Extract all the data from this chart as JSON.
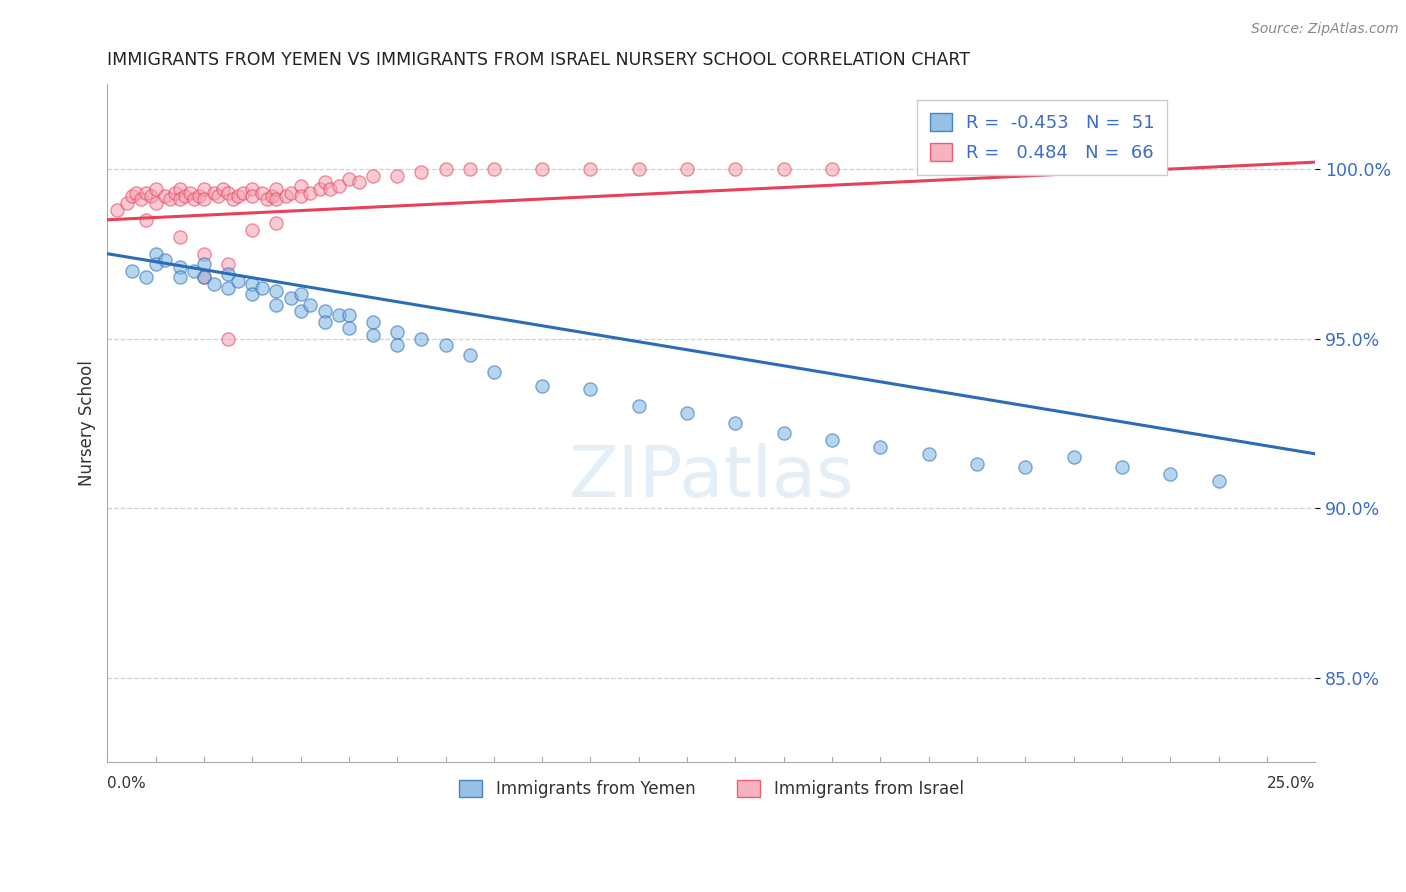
{
  "title": "IMMIGRANTS FROM YEMEN VS IMMIGRANTS FROM ISRAEL NURSERY SCHOOL CORRELATION CHART",
  "source": "Source: ZipAtlas.com",
  "ylabel": "Nursery School",
  "yticks": [
    0.85,
    0.9,
    0.95,
    1.0
  ],
  "ytick_labels": [
    "85.0%",
    "90.0%",
    "95.0%",
    "100.0%"
  ],
  "xlim": [
    0.0,
    0.25
  ],
  "ylim": [
    0.825,
    1.025
  ],
  "legend_blue_R": "-0.453",
  "legend_blue_N": "51",
  "legend_pink_R": "0.484",
  "legend_pink_N": "66",
  "legend_blue_label": "Immigrants from Yemen",
  "legend_pink_label": "Immigrants from Israel",
  "blue_color": "#7BB3E0",
  "pink_color": "#F4A0B0",
  "blue_line_color": "#2B6CB8",
  "pink_line_color": "#E8405A",
  "scatter_alpha": 0.55,
  "scatter_size": 90,
  "blue_x": [
    0.005,
    0.008,
    0.01,
    0.01,
    0.012,
    0.015,
    0.015,
    0.018,
    0.02,
    0.02,
    0.022,
    0.025,
    0.025,
    0.027,
    0.03,
    0.03,
    0.032,
    0.035,
    0.035,
    0.038,
    0.04,
    0.04,
    0.042,
    0.045,
    0.045,
    0.048,
    0.05,
    0.05,
    0.055,
    0.055,
    0.06,
    0.06,
    0.065,
    0.07,
    0.075,
    0.08,
    0.09,
    0.1,
    0.11,
    0.12,
    0.13,
    0.14,
    0.15,
    0.16,
    0.17,
    0.18,
    0.19,
    0.2,
    0.21,
    0.22,
    0.23
  ],
  "blue_y": [
    0.97,
    0.968,
    0.975,
    0.972,
    0.973,
    0.971,
    0.968,
    0.97,
    0.972,
    0.968,
    0.966,
    0.969,
    0.965,
    0.967,
    0.966,
    0.963,
    0.965,
    0.964,
    0.96,
    0.962,
    0.963,
    0.958,
    0.96,
    0.958,
    0.955,
    0.957,
    0.957,
    0.953,
    0.955,
    0.951,
    0.952,
    0.948,
    0.95,
    0.948,
    0.945,
    0.94,
    0.936,
    0.935,
    0.93,
    0.928,
    0.925,
    0.922,
    0.92,
    0.918,
    0.916,
    0.913,
    0.912,
    0.915,
    0.912,
    0.91,
    0.908
  ],
  "pink_x": [
    0.002,
    0.004,
    0.005,
    0.006,
    0.007,
    0.008,
    0.009,
    0.01,
    0.01,
    0.012,
    0.013,
    0.014,
    0.015,
    0.015,
    0.016,
    0.017,
    0.018,
    0.019,
    0.02,
    0.02,
    0.022,
    0.023,
    0.024,
    0.025,
    0.026,
    0.027,
    0.028,
    0.03,
    0.03,
    0.032,
    0.033,
    0.034,
    0.035,
    0.035,
    0.037,
    0.038,
    0.04,
    0.04,
    0.042,
    0.044,
    0.045,
    0.046,
    0.048,
    0.05,
    0.052,
    0.055,
    0.06,
    0.065,
    0.07,
    0.075,
    0.08,
    0.09,
    0.1,
    0.11,
    0.12,
    0.13,
    0.14,
    0.15,
    0.025,
    0.015,
    0.008,
    0.02,
    0.03,
    0.035,
    0.025,
    0.02
  ],
  "pink_y": [
    0.988,
    0.99,
    0.992,
    0.993,
    0.991,
    0.993,
    0.992,
    0.994,
    0.99,
    0.992,
    0.991,
    0.993,
    0.994,
    0.991,
    0.992,
    0.993,
    0.991,
    0.992,
    0.994,
    0.991,
    0.993,
    0.992,
    0.994,
    0.993,
    0.991,
    0.992,
    0.993,
    0.994,
    0.992,
    0.993,
    0.991,
    0.992,
    0.994,
    0.991,
    0.992,
    0.993,
    0.995,
    0.992,
    0.993,
    0.994,
    0.996,
    0.994,
    0.995,
    0.997,
    0.996,
    0.998,
    0.998,
    0.999,
    1.0,
    1.0,
    1.0,
    1.0,
    1.0,
    1.0,
    1.0,
    1.0,
    1.0,
    1.0,
    0.95,
    0.98,
    0.985,
    0.975,
    0.982,
    0.984,
    0.972,
    0.968
  ],
  "watermark": "ZIPatlas",
  "blue_trendline_x": [
    0.0,
    0.25
  ],
  "blue_trendline_y": [
    0.975,
    0.916
  ],
  "pink_trendline_x": [
    0.0,
    0.25
  ],
  "pink_trendline_y": [
    0.985,
    1.002
  ]
}
